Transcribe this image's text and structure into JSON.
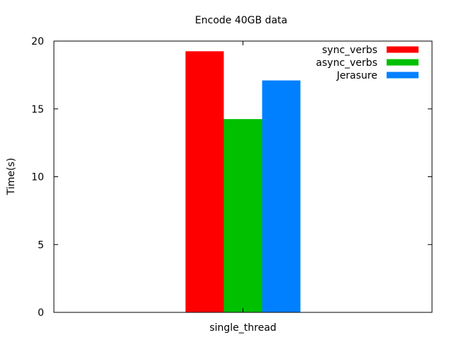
{
  "chart_data": {
    "type": "bar",
    "title": "Encode 40GB data",
    "xlabel": "",
    "ylabel": "Time(s)",
    "categories": [
      "single_thread"
    ],
    "ylim": [
      0,
      20
    ],
    "yticks": [
      0,
      5,
      10,
      15,
      20
    ],
    "grid": false,
    "legend_position": "top-right",
    "series": [
      {
        "name": "sync_verbs",
        "color": "#ff0000",
        "values": [
          19.25
        ]
      },
      {
        "name": "async_verbs",
        "color": "#00c000",
        "values": [
          14.25
        ]
      },
      {
        "name": "Jerasure",
        "color": "#0080ff",
        "values": [
          17.1
        ]
      }
    ]
  }
}
